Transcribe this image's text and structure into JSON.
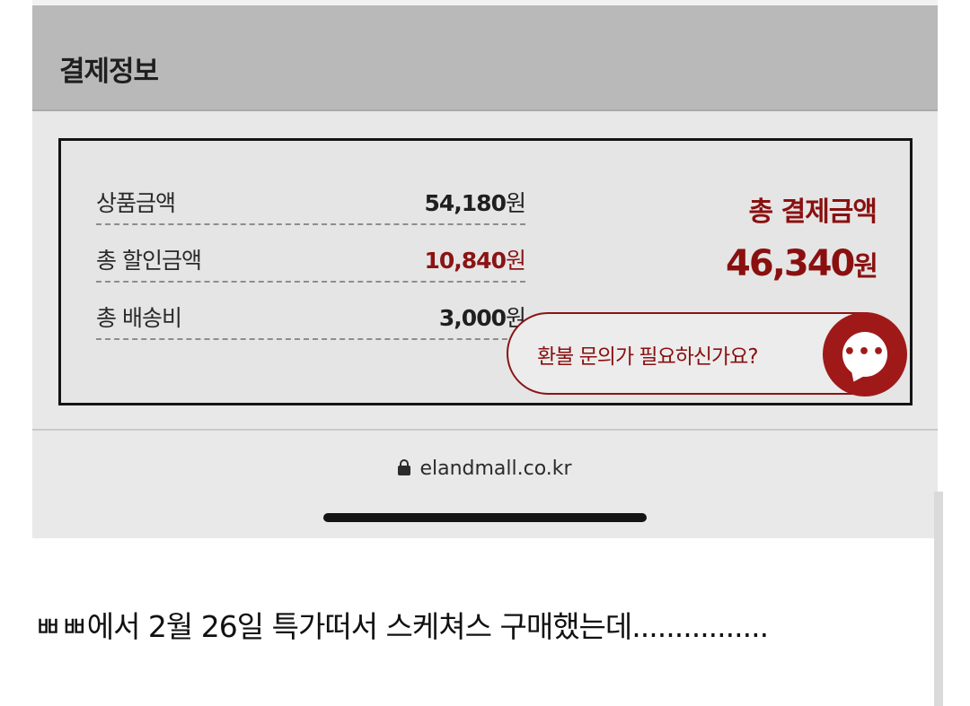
{
  "header": {
    "title": "결제정보"
  },
  "summary": {
    "rows": [
      {
        "label": "상품금액",
        "value": "54,180",
        "unit": "원"
      },
      {
        "label": "총 할인금액",
        "value": "10,840",
        "unit": "원"
      },
      {
        "label": "총 배송비",
        "value": "3,000",
        "unit": "원"
      }
    ],
    "total_label": "총 결제금액",
    "total_value": "46,340",
    "total_unit": "원"
  },
  "refund": {
    "text": "환불 문의가 필요하신가요?",
    "icon": "chat-icon"
  },
  "browser": {
    "url": "elandmall.co.kr",
    "icon": "lock-icon"
  },
  "caption": {
    "text": "ㅃㅃ에서 2월 26일 특가떠서 스케쳐스 구매했는데................"
  },
  "colors": {
    "accent": "#8a1010",
    "chat_button": "#a01919",
    "header_bg": "#b9b9b9"
  }
}
